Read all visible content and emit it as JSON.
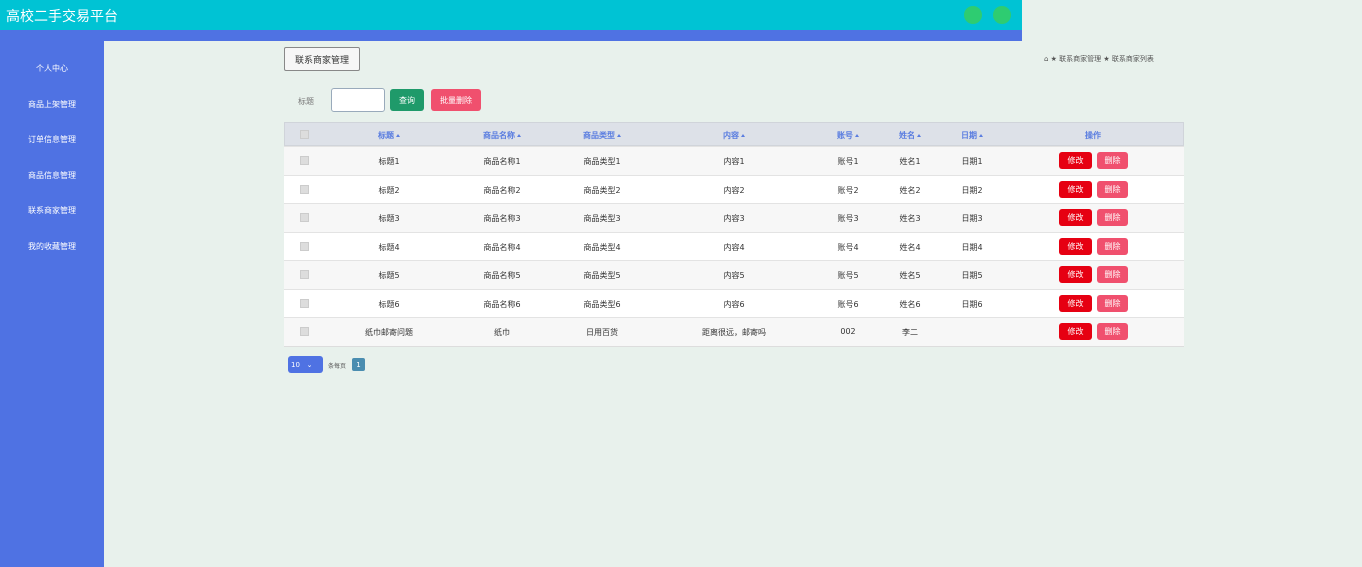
{
  "header": {
    "title": "高校二手交易平台"
  },
  "sidebar": {
    "items": [
      "个人中心",
      "商品上架管理",
      "订单信息管理",
      "商品信息管理",
      "联系商家管理",
      "我的收藏管理"
    ]
  },
  "tab": "联系商家管理",
  "breadcrumb": [
    "联系商家管理",
    "联系商家列表"
  ],
  "search": {
    "label": "标题",
    "query_button": "查询",
    "batch_delete_button": "批量删除"
  },
  "table": {
    "columns": [
      "标题",
      "商品名称",
      "商品类型",
      "内容",
      "账号",
      "姓名",
      "日期",
      "操作"
    ],
    "rows": [
      [
        "标题1",
        "商品名称1",
        "商品类型1",
        "内容1",
        "账号1",
        "姓名1",
        "日期1"
      ],
      [
        "标题2",
        "商品名称2",
        "商品类型2",
        "内容2",
        "账号2",
        "姓名2",
        "日期2"
      ],
      [
        "标题3",
        "商品名称3",
        "商品类型3",
        "内容3",
        "账号3",
        "姓名3",
        "日期3"
      ],
      [
        "标题4",
        "商品名称4",
        "商品类型4",
        "内容4",
        "账号4",
        "姓名4",
        "日期4"
      ],
      [
        "标题5",
        "商品名称5",
        "商品类型5",
        "内容5",
        "账号5",
        "姓名5",
        "日期5"
      ],
      [
        "标题6",
        "商品名称6",
        "商品类型6",
        "内容6",
        "账号6",
        "姓名6",
        "日期6"
      ],
      [
        "纸巾邮寄问题",
        "纸巾",
        "日用百货",
        "距离很远，邮寄吗",
        "002",
        "李二",
        null
      ]
    ],
    "actions": {
      "edit": "修改",
      "delete": "删除"
    }
  },
  "pagination": {
    "page_size": "10",
    "page_size_label": "条每页",
    "current_page": "1"
  }
}
